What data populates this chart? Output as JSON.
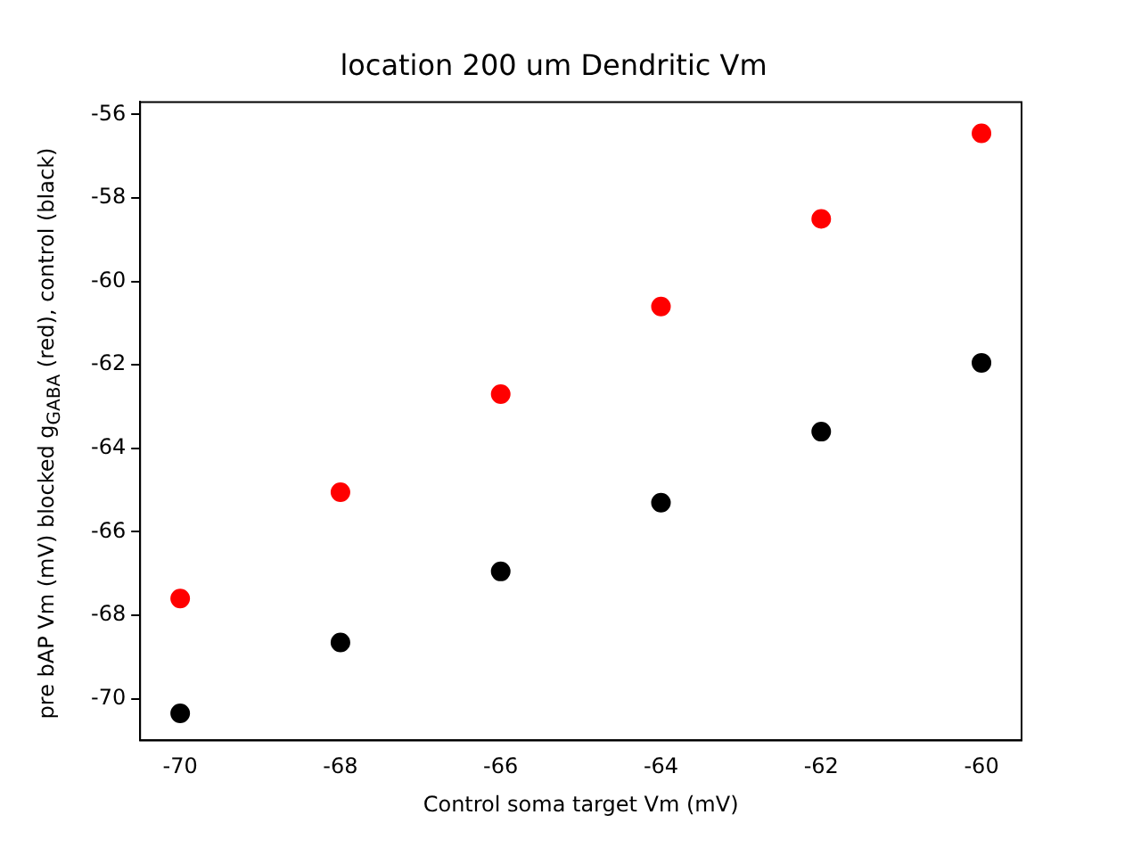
{
  "chart_data": {
    "type": "scatter",
    "title": "location 200 um Dendritic Vm",
    "xlabel": "Control soma target Vm (mV)",
    "ylabel": "pre bAP Vm (mV) blocked g$_{GABA}$ (red), control (black)",
    "xlim": [
      -70.5,
      -59.5
    ],
    "xticks": [
      -70,
      -68,
      -66,
      -64,
      -62,
      -60
    ],
    "ylim": [
      -71,
      -55.7
    ],
    "yticks": [
      -70,
      -68,
      -66,
      -64,
      -62,
      -60,
      -58,
      -56
    ],
    "grid": false,
    "legend": false,
    "marker": "circle",
    "series": [
      {
        "color": "#ff0000",
        "x": [
          -70,
          -68,
          -66,
          -64,
          -62,
          -60
        ],
        "values": [
          -67.6,
          -65.05,
          -62.7,
          -60.6,
          -58.5,
          -56.45
        ]
      },
      {
        "color": "#000000",
        "x": [
          -70,
          -68,
          -66,
          -64,
          -62,
          -60
        ],
        "values": [
          -70.35,
          -68.65,
          -66.95,
          -65.3,
          -63.6,
          -61.95
        ]
      }
    ]
  }
}
